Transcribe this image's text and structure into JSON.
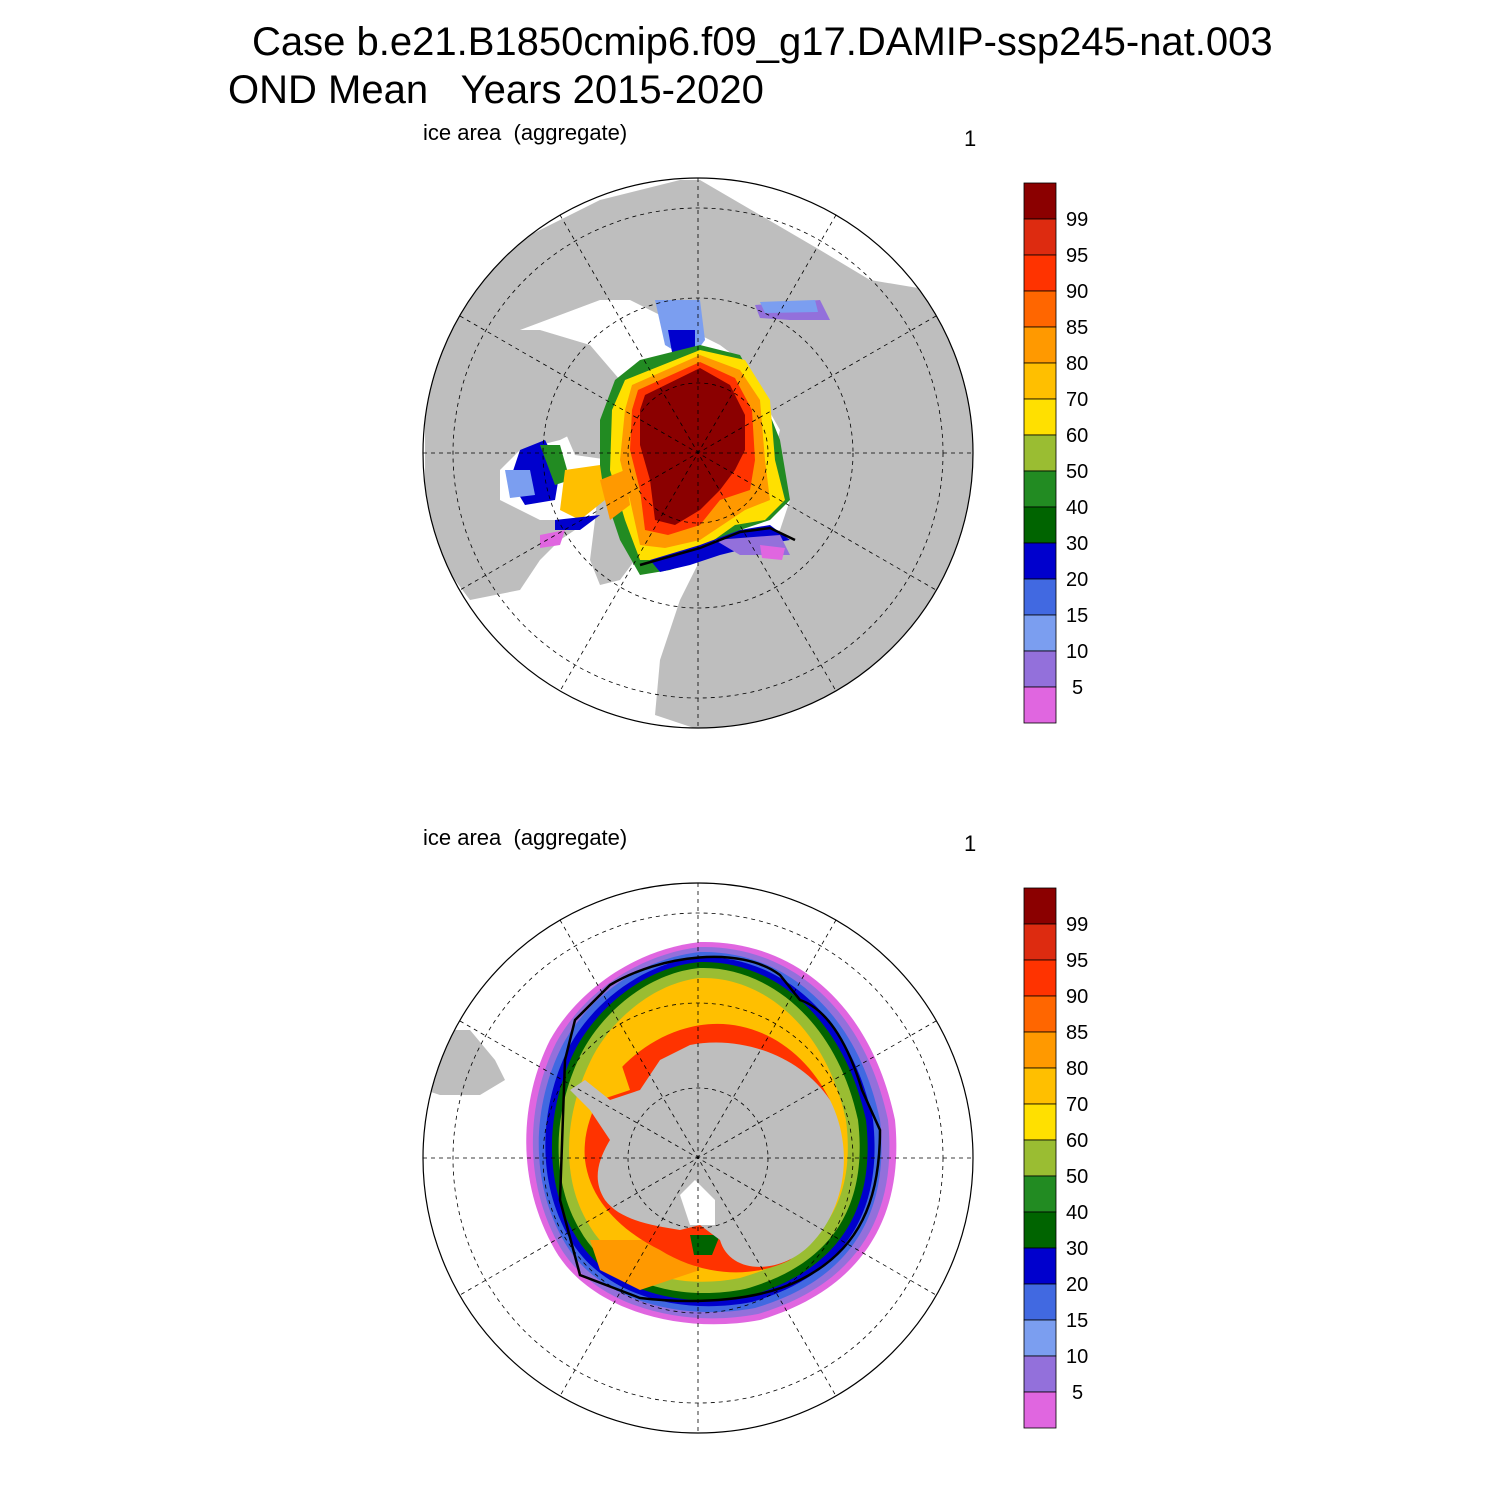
{
  "figure": {
    "title_line1": "Case b.e21.B1850cmip6.f09_g17.DAMIP-ssp245-nat.003",
    "title_line2": "OND Mean   Years 2015-2020"
  },
  "colorbar": {
    "levels": [
      "5",
      "10",
      "15",
      "20",
      "30",
      "40",
      "50",
      "60",
      "70",
      "80",
      "85",
      "90",
      "95",
      "99"
    ],
    "colors": [
      "#e066e0",
      "#9370db",
      "#7b9ef0",
      "#4169e1",
      "#0000cd",
      "#006400",
      "#228b22",
      "#9abd32",
      "#ffe000",
      "#ffbf00",
      "#ff9900",
      "#ff6600",
      "#ff3300",
      "#dd2b10",
      "#8b0000"
    ]
  },
  "panels": [
    {
      "id": "north",
      "left_label": "ice area  (aggregate)",
      "right_label": "1"
    },
    {
      "id": "south",
      "left_label": "ice area  (aggregate)",
      "right_label": "1"
    }
  ],
  "map_colors": {
    "land": "#bebebe",
    "ocean": "#ffffff",
    "grid": "#000000",
    "outline": "#000000"
  }
}
